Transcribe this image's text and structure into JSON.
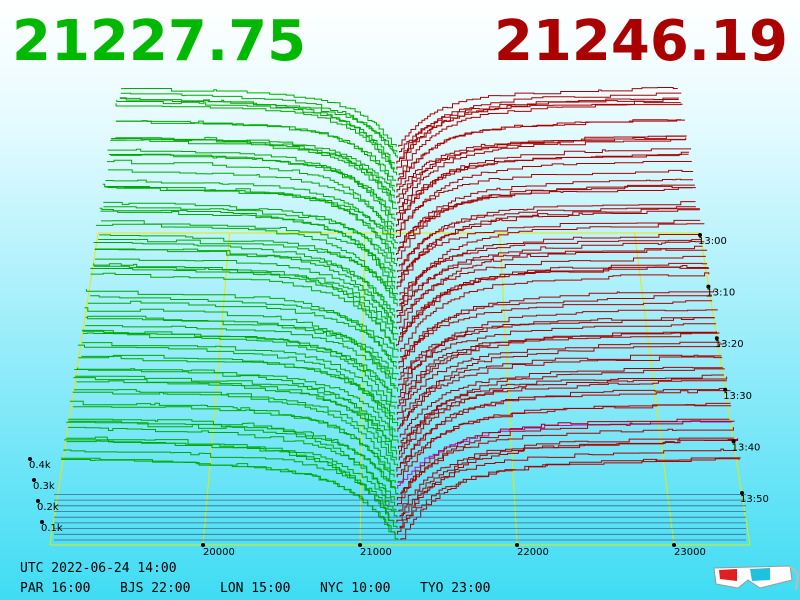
{
  "header": {
    "bid_price": "21227.75",
    "ask_price": "21246.19"
  },
  "chart_data": {
    "type": "depth",
    "xlim": [
      19025,
      23484
    ],
    "xticks": [
      20000,
      21000,
      22000,
      23000
    ],
    "ylim": [
      0,
      500
    ],
    "yticks": [
      {
        "value": 100,
        "label": "0.1k"
      },
      {
        "value": 200,
        "label": "0.2k"
      },
      {
        "value": 300,
        "label": "0.3k"
      },
      {
        "value": 400,
        "label": "0.4k"
      }
    ],
    "time_labels": [
      "13:00",
      "13:10",
      "13:20",
      "13:30",
      "13:40",
      "13:50"
    ],
    "bid_color": "#00aa00",
    "ask_color": "#aa0000",
    "latest_ask_color": "#cc00cc",
    "frame_color": "#e8e800"
  },
  "footer": {
    "utc": "UTC 2022-06-24 14:00",
    "zones": [
      "PAR 16:00",
      "BJS 22:00",
      "LON 15:00",
      "NYC 10:00",
      "TYO 23:00"
    ]
  }
}
